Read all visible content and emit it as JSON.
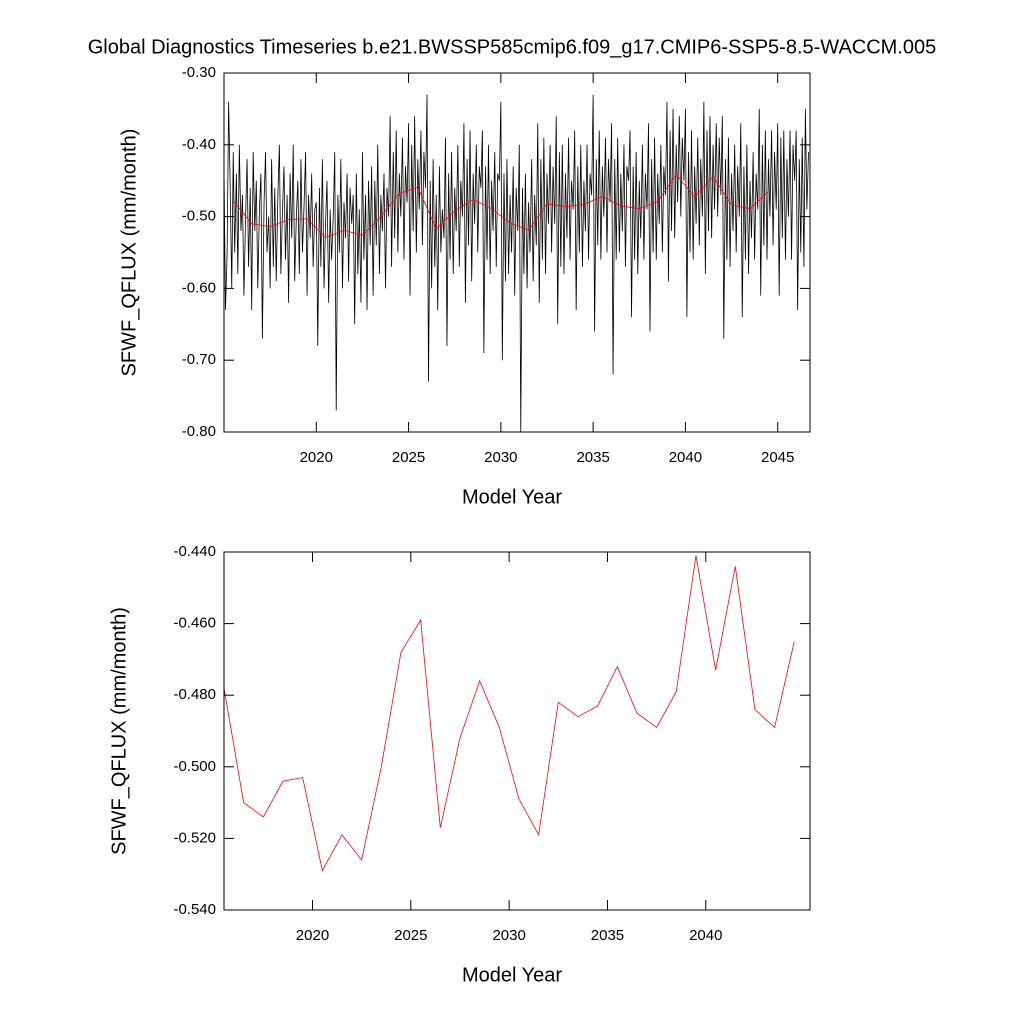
{
  "chart_data": [
    {
      "type": "line",
      "title": "Global Diagnostics Timeseries b.e21.BWSSP585cmip6.f09_g17.CMIP6-SSP5-8.5-WACCM.005",
      "x_label": "Model Year",
      "y_label": "SFWF_QFLUX (mm/month)",
      "xlim": [
        2015,
        2046.75
      ],
      "xticks": [
        2020,
        2025,
        2030,
        2035,
        2040,
        2045
      ],
      "ylim": [
        -0.8,
        -0.3
      ],
      "yticks": [
        {
          "value": -0.8,
          "label": "-0.80"
        },
        {
          "value": -0.7,
          "label": "-0.70"
        },
        {
          "value": -0.6,
          "label": "-0.60"
        },
        {
          "value": -0.5,
          "label": "-0.50"
        },
        {
          "value": -0.4,
          "label": "-0.40"
        },
        {
          "value": -0.3,
          "label": "-0.30"
        }
      ],
      "series": [
        {
          "color": "#000000",
          "x": [
            2015.0,
            2015.08,
            2015.17,
            2015.25,
            2015.33,
            2015.42,
            2015.5,
            2015.58,
            2015.67,
            2015.75,
            2015.83,
            2015.92,
            2016.0,
            2016.08,
            2016.17,
            2016.25,
            2016.33,
            2016.42,
            2016.5,
            2016.58,
            2016.67,
            2016.75,
            2016.83,
            2016.92,
            2017.0,
            2017.08,
            2017.17,
            2017.25,
            2017.33,
            2017.42,
            2017.5,
            2017.58,
            2017.67,
            2017.75,
            2017.83,
            2017.92,
            2018.0,
            2018.08,
            2018.17,
            2018.25,
            2018.33,
            2018.42,
            2018.5,
            2018.58,
            2018.67,
            2018.75,
            2018.83,
            2018.92,
            2019.0,
            2019.08,
            2019.17,
            2019.25,
            2019.33,
            2019.42,
            2019.5,
            2019.58,
            2019.67,
            2019.75,
            2019.83,
            2019.92,
            2020.0,
            2020.08,
            2020.17,
            2020.25,
            2020.33,
            2020.42,
            2020.5,
            2020.58,
            2020.67,
            2020.75,
            2020.83,
            2020.92,
            2021.0,
            2021.08,
            2021.17,
            2021.25,
            2021.33,
            2021.42,
            2021.5,
            2021.58,
            2021.67,
            2021.75,
            2021.83,
            2021.92,
            2022.0,
            2022.08,
            2022.17,
            2022.25,
            2022.33,
            2022.42,
            2022.5,
            2022.58,
            2022.67,
            2022.75,
            2022.83,
            2022.92,
            2023.0,
            2023.08,
            2023.17,
            2023.25,
            2023.33,
            2023.42,
            2023.5,
            2023.58,
            2023.67,
            2023.75,
            2023.83,
            2023.92,
            2024.0,
            2024.08,
            2024.17,
            2024.25,
            2024.33,
            2024.42,
            2024.5,
            2024.58,
            2024.67,
            2024.75,
            2024.83,
            2024.92,
            2025.0,
            2025.08,
            2025.17,
            2025.25,
            2025.33,
            2025.42,
            2025.5,
            2025.58,
            2025.67,
            2025.75,
            2025.83,
            2025.92,
            2026.0,
            2026.08,
            2026.17,
            2026.25,
            2026.33,
            2026.42,
            2026.5,
            2026.58,
            2026.67,
            2026.75,
            2026.83,
            2026.92,
            2027.0,
            2027.08,
            2027.17,
            2027.25,
            2027.33,
            2027.42,
            2027.5,
            2027.58,
            2027.67,
            2027.75,
            2027.83,
            2027.92,
            2028.0,
            2028.08,
            2028.17,
            2028.25,
            2028.33,
            2028.42,
            2028.5,
            2028.58,
            2028.67,
            2028.75,
            2028.83,
            2028.92,
            2029.0,
            2029.08,
            2029.17,
            2029.25,
            2029.33,
            2029.42,
            2029.5,
            2029.58,
            2029.67,
            2029.75,
            2029.83,
            2029.92,
            2030.0,
            2030.08,
            2030.17,
            2030.25,
            2030.33,
            2030.42,
            2030.5,
            2030.58,
            2030.67,
            2030.75,
            2030.83,
            2030.92,
            2031.0,
            2031.08,
            2031.17,
            2031.25,
            2031.33,
            2031.42,
            2031.5,
            2031.58,
            2031.67,
            2031.75,
            2031.83,
            2031.92,
            2032.0,
            2032.08,
            2032.17,
            2032.25,
            2032.33,
            2032.42,
            2032.5,
            2032.58,
            2032.67,
            2032.75,
            2032.83,
            2032.92,
            2033.0,
            2033.08,
            2033.17,
            2033.25,
            2033.33,
            2033.42,
            2033.5,
            2033.58,
            2033.67,
            2033.75,
            2033.83,
            2033.92,
            2034.0,
            2034.08,
            2034.17,
            2034.25,
            2034.33,
            2034.42,
            2034.5,
            2034.58,
            2034.67,
            2034.75,
            2034.83,
            2034.92,
            2035.0,
            2035.08,
            2035.17,
            2035.25,
            2035.33,
            2035.42,
            2035.5,
            2035.58,
            2035.67,
            2035.75,
            2035.83,
            2035.92,
            2036.0,
            2036.08,
            2036.17,
            2036.25,
            2036.33,
            2036.42,
            2036.5,
            2036.58,
            2036.67,
            2036.75,
            2036.83,
            2036.92,
            2037.0,
            2037.08,
            2037.17,
            2037.25,
            2037.33,
            2037.42,
            2037.5,
            2037.58,
            2037.67,
            2037.75,
            2037.83,
            2037.92,
            2038.0,
            2038.08,
            2038.17,
            2038.25,
            2038.33,
            2038.42,
            2038.5,
            2038.58,
            2038.67,
            2038.75,
            2038.83,
            2038.92,
            2039.0,
            2039.08,
            2039.17,
            2039.25,
            2039.33,
            2039.42,
            2039.5,
            2039.58,
            2039.67,
            2039.75,
            2039.83,
            2039.92,
            2040.0,
            2040.08,
            2040.17,
            2040.25,
            2040.33,
            2040.42,
            2040.5,
            2040.58,
            2040.67,
            2040.75,
            2040.83,
            2040.92,
            2041.0,
            2041.08,
            2041.17,
            2041.25,
            2041.33,
            2041.42,
            2041.5,
            2041.58,
            2041.67,
            2041.75,
            2041.83,
            2041.92,
            2042.0,
            2042.08,
            2042.17,
            2042.25,
            2042.33,
            2042.42,
            2042.5,
            2042.58,
            2042.67,
            2042.75,
            2042.83,
            2042.92,
            2043.0,
            2043.08,
            2043.17,
            2043.25,
            2043.33,
            2043.42,
            2043.5,
            2043.58,
            2043.67,
            2043.75,
            2043.83,
            2043.92,
            2044.0,
            2044.08,
            2044.17,
            2044.25,
            2044.33,
            2044.42,
            2044.5,
            2044.58,
            2044.67,
            2044.75,
            2044.83,
            2044.92,
            2045.0,
            2045.08,
            2045.17,
            2045.25,
            2045.33,
            2045.42,
            2045.5,
            2045.58,
            2045.67,
            2045.75,
            2045.83,
            2045.92,
            2046.0,
            2046.08,
            2046.17,
            2046.25,
            2046.33,
            2046.42,
            2046.5,
            2046.58,
            2046.67
          ],
          "values": [
            -0.43,
            -0.63,
            -0.55,
            -0.34,
            -0.45,
            -0.6,
            -0.41,
            -0.55,
            -0.44,
            -0.58,
            -0.4,
            -0.52,
            -0.47,
            -0.61,
            -0.5,
            -0.42,
            -0.57,
            -0.46,
            -0.63,
            -0.41,
            -0.52,
            -0.45,
            -0.6,
            -0.49,
            -0.44,
            -0.67,
            -0.48,
            -0.41,
            -0.55,
            -0.5,
            -0.6,
            -0.42,
            -0.57,
            -0.46,
            -0.59,
            -0.47,
            -0.4,
            -0.58,
            -0.49,
            -0.43,
            -0.56,
            -0.47,
            -0.62,
            -0.44,
            -0.53,
            -0.4,
            -0.59,
            -0.5,
            -0.45,
            -0.58,
            -0.42,
            -0.55,
            -0.49,
            -0.41,
            -0.61,
            -0.47,
            -0.53,
            -0.44,
            -0.57,
            -0.49,
            -0.48,
            -0.68,
            -0.46,
            -0.57,
            -0.42,
            -0.6,
            -0.51,
            -0.45,
            -0.62,
            -0.49,
            -0.56,
            -0.5,
            -0.41,
            -0.77,
            -0.47,
            -0.55,
            -0.42,
            -0.6,
            -0.48,
            -0.53,
            -0.44,
            -0.59,
            -0.46,
            -0.51,
            -0.47,
            -0.65,
            -0.44,
            -0.58,
            -0.49,
            -0.62,
            -0.41,
            -0.56,
            -0.47,
            -0.63,
            -0.45,
            -0.54,
            -0.43,
            -0.61,
            -0.45,
            -0.54,
            -0.4,
            -0.58,
            -0.47,
            -0.52,
            -0.44,
            -0.6,
            -0.46,
            -0.5,
            -0.36,
            -0.57,
            -0.41,
            -0.53,
            -0.38,
            -0.55,
            -0.44,
            -0.5,
            -0.39,
            -0.56,
            -0.43,
            -0.48,
            -0.37,
            -0.61,
            -0.4,
            -0.52,
            -0.36,
            -0.55,
            -0.42,
            -0.49,
            -0.38,
            -0.54,
            -0.41,
            -0.46,
            -0.33,
            -0.73,
            -0.45,
            -0.6,
            -0.42,
            -0.57,
            -0.47,
            -0.63,
            -0.43,
            -0.55,
            -0.49,
            -0.53,
            -0.39,
            -0.68,
            -0.44,
            -0.56,
            -0.41,
            -0.58,
            -0.46,
            -0.52,
            -0.4,
            -0.57,
            -0.45,
            -0.5,
            -0.37,
            -0.62,
            -0.42,
            -0.54,
            -0.38,
            -0.59,
            -0.44,
            -0.51,
            -0.4,
            -0.55,
            -0.43,
            -0.46,
            -0.38,
            -0.69,
            -0.43,
            -0.56,
            -0.4,
            -0.58,
            -0.45,
            -0.52,
            -0.41,
            -0.57,
            -0.44,
            -0.45,
            -0.34,
            -0.7,
            -0.44,
            -0.59,
            -0.42,
            -0.58,
            -0.47,
            -0.55,
            -0.43,
            -0.61,
            -0.46,
            -0.52,
            -0.4,
            -0.8,
            -0.46,
            -0.58,
            -0.44,
            -0.6,
            -0.48,
            -0.55,
            -0.42,
            -0.59,
            -0.47,
            -0.54,
            -0.37,
            -0.62,
            -0.42,
            -0.56,
            -0.39,
            -0.58,
            -0.44,
            -0.51,
            -0.4,
            -0.55,
            -0.43,
            -0.51,
            -0.36,
            -0.65,
            -0.41,
            -0.57,
            -0.4,
            -0.58,
            -0.44,
            -0.53,
            -0.39,
            -0.56,
            -0.45,
            -0.49,
            -0.38,
            -0.63,
            -0.43,
            -0.55,
            -0.4,
            -0.57,
            -0.45,
            -0.52,
            -0.4,
            -0.56,
            -0.44,
            -0.47,
            -0.33,
            -0.66,
            -0.42,
            -0.54,
            -0.38,
            -0.56,
            -0.43,
            -0.5,
            -0.39,
            -0.55,
            -0.42,
            -0.48,
            -0.37,
            -0.72,
            -0.42,
            -0.56,
            -0.39,
            -0.55,
            -0.44,
            -0.52,
            -0.4,
            -0.57,
            -0.43,
            -0.45,
            -0.38,
            -0.64,
            -0.43,
            -0.56,
            -0.41,
            -0.58,
            -0.45,
            -0.53,
            -0.4,
            -0.56,
            -0.44,
            -0.49,
            -0.37,
            -0.66,
            -0.42,
            -0.55,
            -0.39,
            -0.56,
            -0.44,
            -0.51,
            -0.4,
            -0.55,
            -0.43,
            -0.47,
            -0.34,
            -0.59,
            -0.38,
            -0.52,
            -0.35,
            -0.53,
            -0.4,
            -0.48,
            -0.36,
            -0.5,
            -0.39,
            -0.45,
            -0.35,
            -0.64,
            -0.41,
            -0.55,
            -0.38,
            -0.56,
            -0.43,
            -0.51,
            -0.39,
            -0.54,
            -0.42,
            -0.5,
            -0.34,
            -0.58,
            -0.38,
            -0.52,
            -0.36,
            -0.53,
            -0.4,
            -0.49,
            -0.37,
            -0.5,
            -0.39,
            -0.47,
            -0.36,
            -0.67,
            -0.42,
            -0.56,
            -0.39,
            -0.57,
            -0.44,
            -0.52,
            -0.4,
            -0.55,
            -0.43,
            -0.5,
            -0.37,
            -0.64,
            -0.43,
            -0.56,
            -0.4,
            -0.58,
            -0.45,
            -0.53,
            -0.41,
            -0.56,
            -0.44,
            -0.49,
            -0.35,
            -0.61,
            -0.4,
            -0.54,
            -0.38,
            -0.56,
            -0.42,
            -0.5,
            -0.38,
            -0.54,
            -0.41,
            -0.49,
            -0.37,
            -0.61,
            -0.39,
            -0.53,
            -0.38,
            -0.56,
            -0.42,
            -0.5,
            -0.38,
            -0.56,
            -0.4,
            -0.45,
            -0.38,
            -0.63,
            -0.42,
            -0.55,
            -0.39,
            -0.57,
            -0.35,
            -0.49,
            -0.41
          ]
        },
        {
          "color": "#ff0000",
          "x": [
            2015.5,
            2016.5,
            2017.5,
            2018.5,
            2019.5,
            2020.5,
            2021.5,
            2022.5,
            2023.5,
            2024.5,
            2025.5,
            2026.5,
            2027.5,
            2028.5,
            2029.5,
            2030.5,
            2031.5,
            2032.5,
            2033.5,
            2034.5,
            2035.5,
            2036.5,
            2037.5,
            2038.5,
            2039.5,
            2040.5,
            2041.5,
            2042.5,
            2043.5,
            2044.5
          ],
          "values": [
            -0.478,
            -0.51,
            -0.514,
            -0.504,
            -0.503,
            -0.529,
            -0.519,
            -0.526,
            -0.5,
            -0.468,
            -0.459,
            -0.517,
            -0.492,
            -0.476,
            -0.489,
            -0.509,
            -0.519,
            -0.482,
            -0.486,
            -0.483,
            -0.472,
            -0.485,
            -0.489,
            -0.479,
            -0.441,
            -0.473,
            -0.444,
            -0.484,
            -0.489,
            -0.465
          ]
        }
      ]
    },
    {
      "type": "line",
      "x_label": "Model Year",
      "y_label": "SFWF_QFLUX (mm/month)",
      "xlim": [
        2015.5,
        2045.3
      ],
      "xticks": [
        2020,
        2025,
        2030,
        2035,
        2040
      ],
      "ylim": [
        -0.54,
        -0.44
      ],
      "yticks": [
        {
          "value": -0.54,
          "label": "-0.540"
        },
        {
          "value": -0.52,
          "label": "-0.520"
        },
        {
          "value": -0.5,
          "label": "-0.500"
        },
        {
          "value": -0.48,
          "label": "-0.480"
        },
        {
          "value": -0.46,
          "label": "-0.460"
        },
        {
          "value": -0.44,
          "label": "-0.440"
        }
      ],
      "series": [
        {
          "color": "#ff0000",
          "x": [
            2015.5,
            2016.5,
            2017.5,
            2018.5,
            2019.5,
            2020.5,
            2021.5,
            2022.5,
            2023.5,
            2024.5,
            2025.5,
            2026.5,
            2027.5,
            2028.5,
            2029.5,
            2030.5,
            2031.5,
            2032.5,
            2033.5,
            2034.5,
            2035.5,
            2036.5,
            2037.5,
            2038.5,
            2039.5,
            2040.5,
            2041.5,
            2042.5,
            2043.5,
            2044.5
          ],
          "values": [
            -0.478,
            -0.51,
            -0.514,
            -0.504,
            -0.503,
            -0.529,
            -0.519,
            -0.526,
            -0.5,
            -0.468,
            -0.459,
            -0.517,
            -0.492,
            -0.476,
            -0.489,
            -0.509,
            -0.519,
            -0.482,
            -0.486,
            -0.483,
            -0.472,
            -0.485,
            -0.489,
            -0.479,
            -0.441,
            -0.473,
            -0.444,
            -0.484,
            -0.489,
            -0.465
          ]
        }
      ]
    }
  ]
}
